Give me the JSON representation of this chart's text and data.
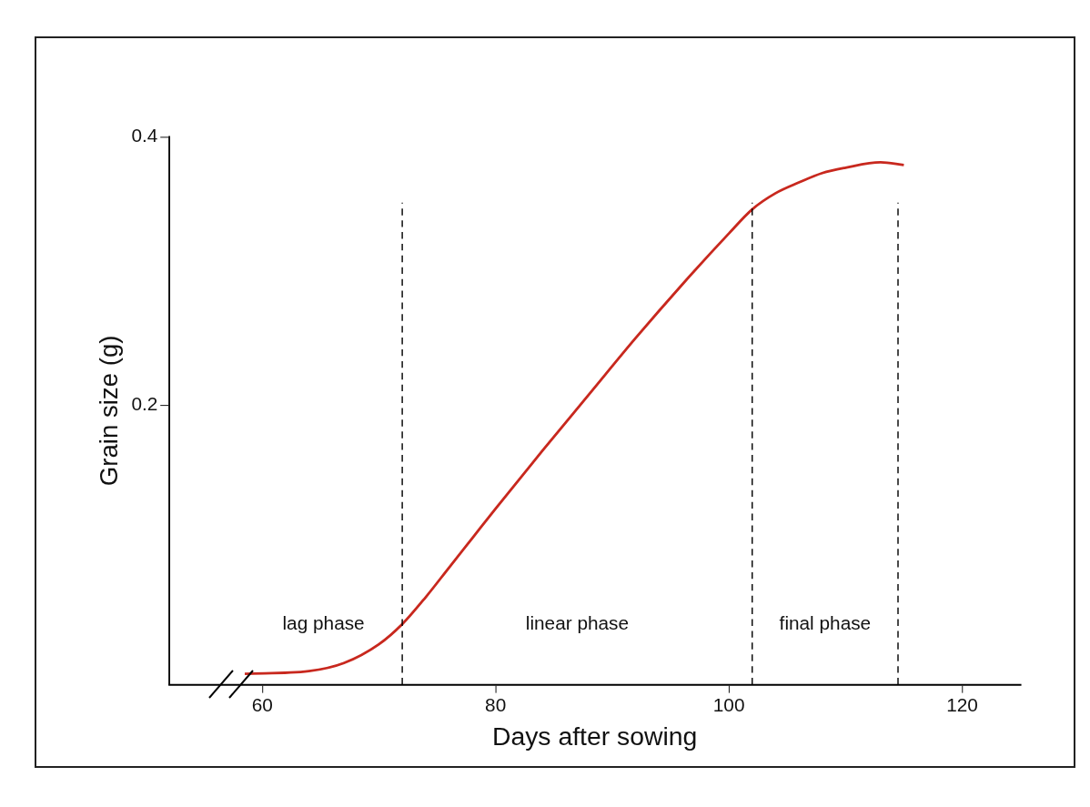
{
  "chart_data": {
    "type": "line",
    "xlabel": "Days after sowing",
    "ylabel": "Grain size (g)",
    "xlim": [
      52,
      125
    ],
    "xticks": [
      60,
      80,
      100,
      120
    ],
    "ylim": [
      -0.008,
      0.4
    ],
    "yticks": [
      0.2,
      0.4
    ],
    "series": [
      {
        "color": "#c8281e",
        "x": [
          58.5,
          64,
          67,
          70,
          72,
          74,
          76,
          78,
          80,
          84,
          88,
          92,
          96,
          100,
          102,
          104,
          106,
          108,
          110,
          113,
          115
        ],
        "values": [
          0,
          0.002,
          0.008,
          0.022,
          0.037,
          0.057,
          0.079,
          0.101,
          0.123,
          0.166,
          0.208,
          0.25,
          0.29,
          0.328,
          0.346,
          0.358,
          0.366,
          0.373,
          0.377,
          0.381,
          0.379
        ]
      }
    ],
    "ref_lines": [
      {
        "axis": "x",
        "value": 72,
        "color": "#000000",
        "line_style": "dashed"
      },
      {
        "axis": "x",
        "value": 102,
        "color": "#000000",
        "line_style": "dashed"
      },
      {
        "axis": "x",
        "value": 114.5,
        "color": "#000000",
        "line_style": "dashed"
      }
    ],
    "annotations": [
      "lag phase",
      "linear phase",
      "final phase"
    ],
    "grid": false,
    "legend": false,
    "marker": "none",
    "line_style": "solid"
  }
}
